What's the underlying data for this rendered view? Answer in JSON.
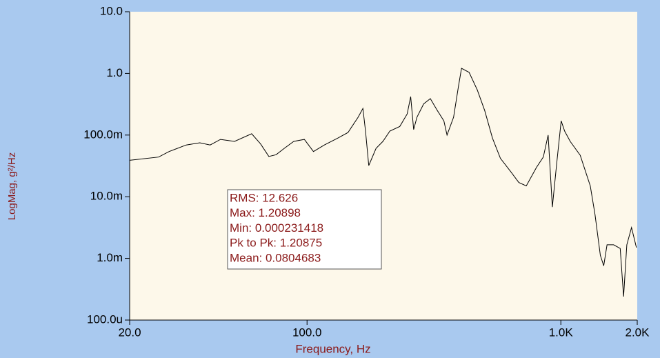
{
  "chart_data": {
    "type": "line",
    "log_x": true,
    "log_y": true,
    "xlabel": "Frequency, Hz",
    "ylabel": "LogMag, g²/Hz",
    "x": [
      20,
      26,
      28.6,
      33.4,
      37.8,
      41.5,
      45.6,
      51.8,
      60.5,
      65.6,
      70.7,
      75.5,
      81.4,
      88.6,
      97.6,
      106,
      117,
      132,
      145,
      159,
      166,
      170,
      175,
      187,
      199,
      212,
      232,
      248,
      256,
      263,
      271,
      288,
      306,
      326,
      346,
      356,
      378,
      395,
      406,
      435,
      468,
      501,
      538,
      578,
      637,
      683,
      731,
      802,
      853,
      891,
      926,
      961,
      1003,
      1035,
      1089,
      1192,
      1306,
      1363,
      1431,
      1476,
      1521,
      1615,
      1714,
      1767,
      1820,
      1899,
      1985
    ],
    "values": [
      0.039,
      0.044,
      0.054,
      0.069,
      0.075,
      0.069,
      0.085,
      0.079,
      0.105,
      0.072,
      0.045,
      0.048,
      0.061,
      0.079,
      0.085,
      0.054,
      0.069,
      0.089,
      0.11,
      0.195,
      0.27,
      0.116,
      0.032,
      0.061,
      0.079,
      0.116,
      0.138,
      0.22,
      0.42,
      0.123,
      0.195,
      0.32,
      0.39,
      0.25,
      0.17,
      0.1,
      0.195,
      0.62,
      1.209,
      1.04,
      0.545,
      0.25,
      0.089,
      0.042,
      0.025,
      0.017,
      0.015,
      0.03,
      0.044,
      0.1,
      0.0068,
      0.032,
      0.17,
      0.116,
      0.079,
      0.047,
      0.015,
      0.0052,
      0.00112,
      0.00076,
      0.00166,
      0.00166,
      0.00145,
      0.00024,
      0.00166,
      0.00316,
      0.0015
    ],
    "color": "#000000",
    "xlim": [
      20,
      2000
    ],
    "xticks": [
      {
        "value": 20,
        "label": "20.0"
      },
      {
        "value": 100,
        "label": "100.0"
      },
      {
        "value": 1000,
        "label": "1.0K"
      },
      {
        "value": 2000,
        "label": "2.0K"
      }
    ],
    "ylim": [
      0.0001,
      10
    ],
    "yticks": [
      {
        "value": 10,
        "label": "10.0"
      },
      {
        "value": 1,
        "label": "1.0"
      },
      {
        "value": 0.1,
        "label": "100.0m"
      },
      {
        "value": 0.01,
        "label": "10.0m"
      },
      {
        "value": 0.001,
        "label": "1.0m"
      },
      {
        "value": 0.0001,
        "label": "100.0u"
      }
    ],
    "annotations": [
      "RMS: 12.626",
      "Max: 1.20898",
      "Min: 0.000231418",
      "Pk to Pk: 1.20875",
      "Mean: 0.0804683"
    ]
  }
}
